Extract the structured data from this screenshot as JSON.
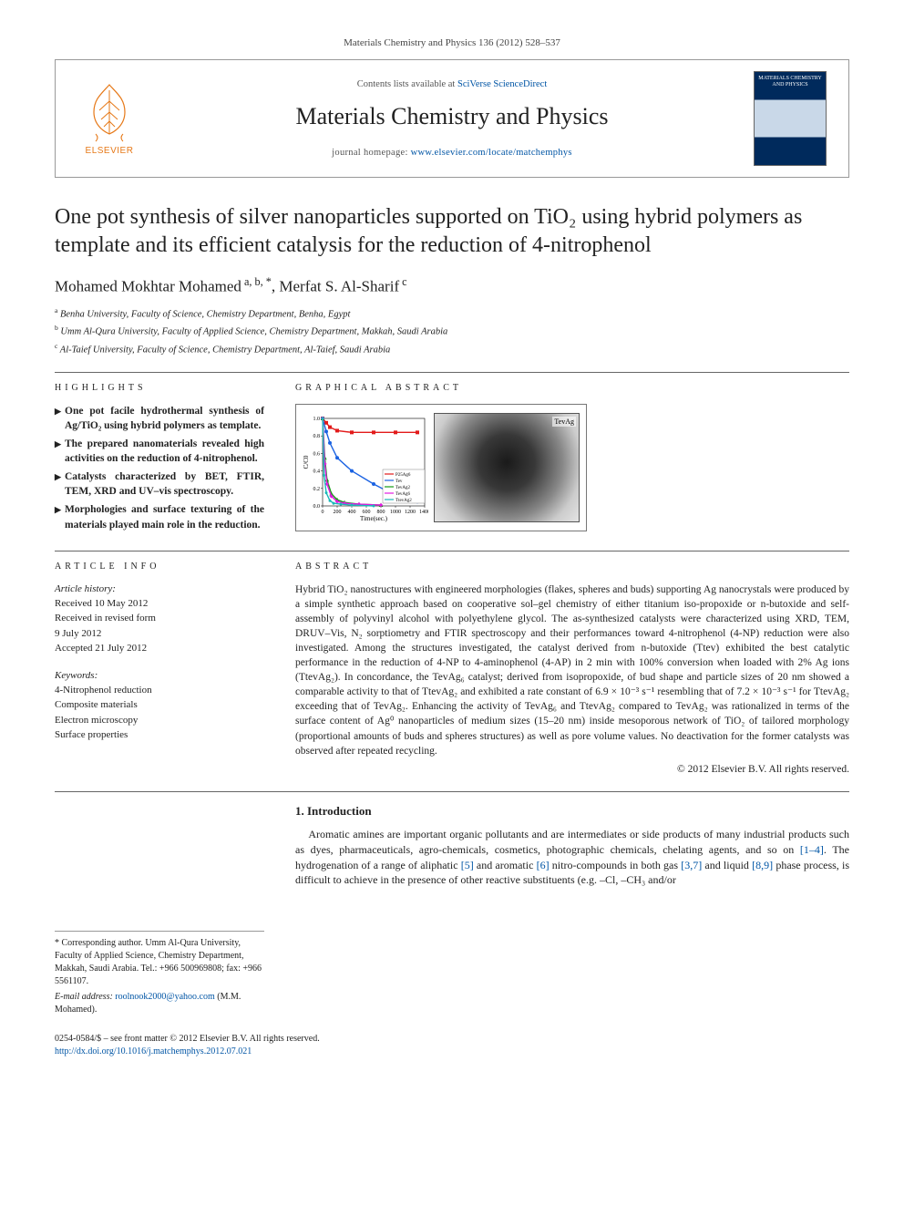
{
  "citation": "Materials Chemistry and Physics 136 (2012) 528–537",
  "masthead": {
    "publisher_label": "ELSEVIER",
    "contents_prefix": "Contents lists available at ",
    "contents_link": "SciVerse ScienceDirect",
    "journal_name": "Materials Chemistry and Physics",
    "homepage_prefix": "journal homepage: ",
    "homepage_url": "www.elsevier.com/locate/matchemphys",
    "cover_title": "MATERIALS CHEMISTRY AND PHYSICS"
  },
  "title": "One pot synthesis of silver nanoparticles supported on TiO₂ using hybrid polymers as template and its efficient catalysis for the reduction of 4-nitrophenol",
  "authors_html": "Mohamed Mokhtar Mohamed<sup> a, b, *</sup>, Merfat S. Al-Sharif<sup> c</sup>",
  "affiliations": [
    {
      "sup": "a",
      "text": "Benha University, Faculty of Science, Chemistry Department, Benha, Egypt"
    },
    {
      "sup": "b",
      "text": "Umm Al-Qura University, Faculty of Applied Science, Chemistry Department, Makkah, Saudi Arabia"
    },
    {
      "sup": "c",
      "text": "Al-Taief University, Faculty of Science, Chemistry Department, Al-Taief, Saudi Arabia"
    }
  ],
  "highlights": {
    "heading": "highlights",
    "items": [
      "One pot facile hydrothermal synthesis of Ag/TiO₂ using hybrid polymers as template.",
      "The prepared nanomaterials revealed high activities on the reduction of 4-nitrophenol.",
      "Catalysts characterized by BET, FTIR, TEM, XRD and UV–vis spectroscopy.",
      "Morphologies and surface texturing of the materials played main role in the reduction."
    ]
  },
  "graphical_abstract": {
    "heading": "graphical abstract",
    "tem_label": "TevAg",
    "chart": {
      "xlabel": "Time(sec.)",
      "ylabel": "C/C0",
      "xlim": [
        0,
        1400
      ],
      "ylim": [
        0,
        1.0
      ],
      "xticks": [
        0,
        200,
        400,
        600,
        800,
        1000,
        1200,
        1400
      ],
      "yticks": [
        0.0,
        0.2,
        0.4,
        0.6,
        0.8,
        1.0
      ],
      "label_fontsize": 7,
      "tick_fontsize": 6,
      "series": [
        {
          "name": "P25Ag6",
          "color": "#e21a1a",
          "marker": "square",
          "x": [
            0,
            50,
            100,
            200,
            400,
            700,
            1000,
            1300
          ],
          "y": [
            1.0,
            0.95,
            0.9,
            0.86,
            0.84,
            0.84,
            0.84,
            0.84
          ]
        },
        {
          "name": "Tev",
          "color": "#1a62e2",
          "marker": "circle",
          "x": [
            0,
            50,
            100,
            200,
            400,
            700,
            1000,
            1300
          ],
          "y": [
            1.0,
            0.85,
            0.72,
            0.55,
            0.4,
            0.25,
            0.12,
            0.05
          ]
        },
        {
          "name": "TevAg2",
          "color": "#139b13",
          "marker": "triangle",
          "x": [
            0,
            30,
            60,
            120,
            200,
            300,
            500,
            800
          ],
          "y": [
            1.0,
            0.55,
            0.3,
            0.14,
            0.07,
            0.04,
            0.02,
            0.01
          ]
        },
        {
          "name": "TevAg6",
          "color": "#e21ae2",
          "marker": "diamond",
          "x": [
            0,
            30,
            60,
            120,
            200,
            300,
            500,
            800
          ],
          "y": [
            1.0,
            0.48,
            0.25,
            0.11,
            0.05,
            0.03,
            0.02,
            0.01
          ]
        },
        {
          "name": "TtevAg2",
          "color": "#1ab8b8",
          "marker": "asterisk",
          "x": [
            0,
            20,
            50,
            100,
            150,
            250,
            400,
            700
          ],
          "y": [
            1.0,
            0.35,
            0.15,
            0.06,
            0.03,
            0.02,
            0.01,
            0.0
          ]
        }
      ],
      "legend_pos": "right-inside",
      "background": "#ffffff",
      "grid": false,
      "axis_color": "#000000",
      "line_width": 1.4,
      "marker_size": 3.2
    }
  },
  "article_info": {
    "heading": "article info",
    "history_head": "Article history:",
    "history": [
      "Received 10 May 2012",
      "Received in revised form",
      "9 July 2012",
      "Accepted 21 July 2012"
    ],
    "keywords_head": "Keywords:",
    "keywords": [
      "4-Nitrophenol reduction",
      "Composite materials",
      "Electron microscopy",
      "Surface properties"
    ]
  },
  "abstract": {
    "heading": "abstract",
    "text": "Hybrid TiO₂ nanostructures with engineered morphologies (flakes, spheres and buds) supporting Ag nanocrystals were produced by a simple synthetic approach based on cooperative sol–gel chemistry of either titanium iso-propoxide or n-butoxide and self-assembly of polyvinyl alcohol with polyethylene glycol. The as-synthesized catalysts were characterized using XRD, TEM, DRUV–Vis, N₂ sorptiometry and FTIR spectroscopy and their performances toward 4-nitrophenol (4-NP) reduction were also investigated. Among the structures investigated, the catalyst derived from n-butoxide (Ttev) exhibited the best catalytic performance in the reduction of 4-NP to 4-aminophenol (4-AP) in 2 min with 100% conversion when loaded with 2% Ag ions (TtevAg₂). In concordance, the TevAg₆ catalyst; derived from isopropoxide, of bud shape and particle sizes of 20 nm showed a comparable activity to that of TtevAg₂ and exhibited a rate constant of 6.9 × 10⁻³ s⁻¹ resembling that of 7.2 × 10⁻³ s⁻¹ for TtevAg₂ exceeding that of TevAg₂. Enhancing the activity of TevAg₆ and TtevAg₂ compared to TevAg₂ was rationalized in terms of the surface content of Ag⁰ nanoparticles of medium sizes (15–20 nm) inside mesoporous network of TiO₂ of tailored morphology (proportional amounts of buds and spheres structures) as well as pore volume values. No deactivation for the former catalysts was observed after repeated recycling.",
    "copyright": "© 2012 Elsevier B.V. All rights reserved."
  },
  "intro": {
    "heading": "1. Introduction",
    "text_prefix": "Aromatic amines are important organic pollutants and are intermediates or side products of many industrial products such as dyes, pharmaceuticals, agro-chemicals, cosmetics, photographic chemicals, chelating agents, and so on ",
    "ref1": "[1–4]",
    "text_mid1": ". The hydrogenation of a range of aliphatic ",
    "ref2": "[5]",
    "text_mid2": " and aromatic ",
    "ref3": "[6]",
    "text_mid3": " nitro-compounds in both gas ",
    "ref4": "[3,7]",
    "text_mid4": " and liquid ",
    "ref5": "[8,9]",
    "text_suffix": " phase process, is difficult to achieve in the presence of other reactive substituents (e.g. –Cl, –CH₃ and/or"
  },
  "footnotes": {
    "corr": "* Corresponding author. Umm Al-Qura University, Faculty of Applied Science, Chemistry Department, Makkah, Saudi Arabia. Tel.: +966 500969808; fax: +966 5561107.",
    "email_label": "E-mail address: ",
    "email": "roolnook2000@yahoo.com",
    "email_suffix": " (M.M. Mohamed)."
  },
  "bottom": {
    "line1": "0254-0584/$ – see front matter © 2012 Elsevier B.V. All rights reserved.",
    "doi": "http://dx.doi.org/10.1016/j.matchemphys.2012.07.021"
  }
}
